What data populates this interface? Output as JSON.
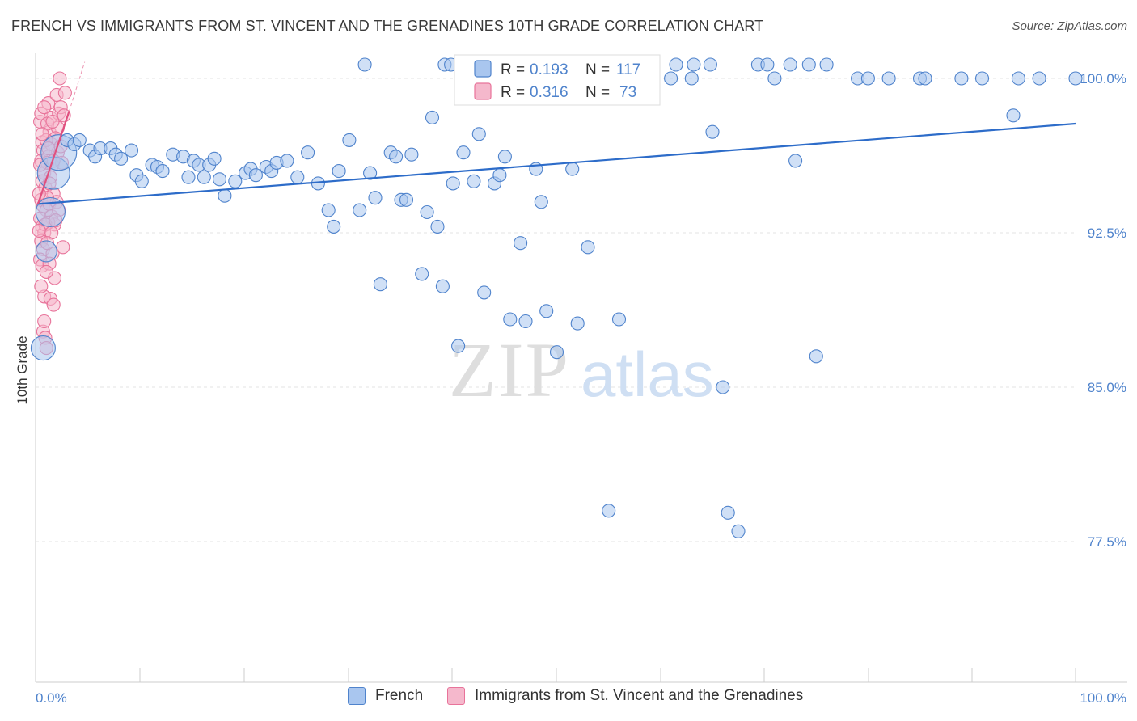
{
  "title": "FRENCH VS IMMIGRANTS FROM ST. VINCENT AND THE GRENADINES 10TH GRADE CORRELATION CHART",
  "source": "Source: ZipAtlas.com",
  "watermark": {
    "zip": "ZIP",
    "atlas": "atlas"
  },
  "colors": {
    "blue": "#4f83cc",
    "blue_fill": "#a9c6ef",
    "blue_line": "#2d6cc9",
    "pink": "#e8739a",
    "pink_fill": "#f5b8cc",
    "pink_line": "#e0507f",
    "grid": "#e3e3e3",
    "axis": "#cccccc"
  },
  "legend_box": {
    "rows": [
      {
        "r_label": "R = ",
        "r_value": "0.193",
        "n_label": "N = ",
        "n_value": "117",
        "color": "blue"
      },
      {
        "r_label": "R = ",
        "r_value": "0.316",
        "n_label": "N = ",
        "n_value": "73",
        "color": "pink"
      }
    ]
  },
  "bottom_legend": [
    {
      "label": "French",
      "color": "blue"
    },
    {
      "label": "Immigrants from St. Vincent and the Grenadines",
      "color": "pink"
    }
  ],
  "chart_data": {
    "type": "scatter",
    "title": "FRENCH VS IMMIGRANTS FROM ST. VINCENT AND THE GRENADINES 10TH GRADE CORRELATION CHART",
    "xlabel": "",
    "ylabel": "10th Grade",
    "xlim": [
      0,
      100
    ],
    "ylim": [
      70,
      101
    ],
    "x_tick_labels": [
      "0.0%",
      "100.0%"
    ],
    "y_ticks": [
      77.5,
      85.0,
      92.5,
      100.0
    ],
    "y_tick_labels": [
      "77.5%",
      "85.0%",
      "92.5%",
      "100.0%"
    ],
    "grid": true,
    "legend_position": "top-center",
    "series": [
      {
        "name": "French",
        "color": "blue",
        "trend": {
          "x": [
            0,
            100
          ],
          "y": [
            93.9,
            97.8
          ]
        },
        "points": [
          [
            0.5,
            86.9
          ],
          [
            0.8,
            91.6
          ],
          [
            1.2,
            93.5
          ],
          [
            1.5,
            95.4
          ],
          [
            2,
            96.4
          ],
          [
            2.8,
            97.0
          ],
          [
            3.5,
            96.8
          ],
          [
            4,
            97.0
          ],
          [
            5,
            96.5
          ],
          [
            5.5,
            96.2
          ],
          [
            6,
            96.6
          ],
          [
            7,
            96.6
          ],
          [
            7.5,
            96.3
          ],
          [
            8,
            96.1
          ],
          [
            9,
            96.5
          ],
          [
            9.5,
            95.3
          ],
          [
            10,
            95.0
          ],
          [
            11,
            95.8
          ],
          [
            11.5,
            95.7
          ],
          [
            12,
            95.5
          ],
          [
            13,
            96.3
          ],
          [
            14,
            96.2
          ],
          [
            14.5,
            95.2
          ],
          [
            15,
            96.0
          ],
          [
            15.5,
            95.8
          ],
          [
            16,
            95.2
          ],
          [
            16.5,
            95.8
          ],
          [
            17,
            96.1
          ],
          [
            17.5,
            95.1
          ],
          [
            18,
            94.3
          ],
          [
            19,
            95.0
          ],
          [
            20,
            95.4
          ],
          [
            20.5,
            95.6
          ],
          [
            21,
            95.3
          ],
          [
            22,
            95.7
          ],
          [
            22.5,
            95.5
          ],
          [
            23,
            95.9
          ],
          [
            24,
            96.0
          ],
          [
            25,
            95.2
          ],
          [
            26,
            96.4
          ],
          [
            27,
            94.9
          ],
          [
            28,
            93.6
          ],
          [
            28.5,
            92.8
          ],
          [
            29,
            95.5
          ],
          [
            30,
            97.0
          ],
          [
            31,
            93.6
          ],
          [
            32,
            95.4
          ],
          [
            32.5,
            94.2
          ],
          [
            33,
            90.0
          ],
          [
            34,
            96.4
          ],
          [
            34.5,
            96.2
          ],
          [
            35,
            94.1
          ],
          [
            35.5,
            94.1
          ],
          [
            36,
            96.3
          ],
          [
            37,
            90.5
          ],
          [
            37.5,
            93.5
          ],
          [
            38,
            98.1
          ],
          [
            38.5,
            92.8
          ],
          [
            39,
            89.9
          ],
          [
            40,
            94.9
          ],
          [
            40.5,
            87.0
          ],
          [
            41,
            96.4
          ],
          [
            42,
            95.0
          ],
          [
            42.5,
            97.3
          ],
          [
            43,
            89.6
          ],
          [
            44,
            94.9
          ],
          [
            44.5,
            95.3
          ],
          [
            45,
            96.2
          ],
          [
            45.5,
            88.3
          ],
          [
            46.5,
            92.0
          ],
          [
            47,
            88.2
          ],
          [
            48,
            95.6
          ],
          [
            48.5,
            94.0
          ],
          [
            49,
            88.7
          ],
          [
            50,
            86.7
          ],
          [
            51.5,
            95.6
          ],
          [
            52,
            88.1
          ],
          [
            53,
            91.8
          ],
          [
            55,
            79.0
          ],
          [
            56,
            88.3
          ],
          [
            57,
            100.0
          ],
          [
            61,
            100.0
          ],
          [
            63,
            100.0
          ],
          [
            65,
            97.4
          ],
          [
            66,
            85.0
          ],
          [
            66.5,
            78.9
          ],
          [
            67.5,
            78.0
          ],
          [
            71,
            100.0
          ],
          [
            73,
            96.0
          ],
          [
            75,
            86.5
          ],
          [
            79,
            100.0
          ],
          [
            80,
            100.0
          ],
          [
            82,
            100.0
          ],
          [
            85,
            100.0
          ],
          [
            85.5,
            100.0
          ],
          [
            89,
            100.0
          ],
          [
            91,
            100.0
          ],
          [
            94,
            98.2
          ],
          [
            94.5,
            100.0
          ],
          [
            96.5,
            100.0
          ],
          [
            100,
            100.0
          ]
        ],
        "top_row_points": [
          31.5,
          39.2,
          39.8,
          42.3,
          43.8,
          47.3,
          48.5,
          51.9,
          55.2,
          61.5,
          63.2,
          64.8,
          69.4,
          70.3,
          72.5,
          74.3,
          76.0
        ]
      },
      {
        "name": "Immigrants from St. Vincent and the Grenadines",
        "color": "pink",
        "trend": {
          "x": [
            0,
            3.0
          ],
          "y": [
            93.9,
            98.4
          ]
        },
        "trend_ext": {
          "x": [
            3.0,
            4.5
          ],
          "y": [
            98.4,
            100.8
          ]
        },
        "points": [
          [
            0.2,
            97.9
          ],
          [
            0.3,
            98.3
          ],
          [
            0.4,
            96.9
          ],
          [
            0.5,
            96.5
          ],
          [
            0.3,
            96.0
          ],
          [
            0.6,
            95.4
          ],
          [
            0.4,
            95.0
          ],
          [
            0.7,
            94.7
          ],
          [
            0.3,
            94.1
          ],
          [
            0.5,
            93.8
          ],
          [
            0.8,
            93.6
          ],
          [
            0.2,
            93.2
          ],
          [
            0.4,
            92.8
          ],
          [
            0.6,
            92.5
          ],
          [
            0.3,
            92.1
          ],
          [
            0.5,
            91.7
          ],
          [
            0.2,
            91.2
          ],
          [
            0.4,
            90.9
          ],
          [
            0.6,
            89.4
          ],
          [
            0.5,
            87.7
          ],
          [
            0.7,
            87.4
          ],
          [
            0.8,
            86.9
          ],
          [
            1.0,
            98.8
          ],
          [
            1.2,
            98.1
          ],
          [
            1.1,
            97.4
          ],
          [
            1.3,
            96.8
          ],
          [
            1.0,
            96.2
          ],
          [
            1.4,
            95.8
          ],
          [
            1.2,
            95.2
          ],
          [
            1.5,
            94.4
          ],
          [
            1.1,
            93.9
          ],
          [
            1.3,
            93.3
          ],
          [
            1.6,
            92.9
          ],
          [
            1.4,
            91.5
          ],
          [
            1.6,
            90.3
          ],
          [
            1.2,
            89.3
          ],
          [
            1.5,
            89.0
          ],
          [
            1.8,
            99.2
          ],
          [
            2.0,
            98.3
          ],
          [
            1.9,
            97.6
          ],
          [
            2.2,
            98.6
          ],
          [
            2.5,
            98.2
          ],
          [
            2.1,
            100.0
          ],
          [
            1.7,
            97.1
          ],
          [
            1.9,
            96.4
          ],
          [
            2.3,
            95.9
          ],
          [
            1.8,
            94.0
          ],
          [
            2.0,
            93.6
          ],
          [
            2.4,
            91.8
          ],
          [
            0.9,
            97.8
          ],
          [
            0.8,
            97.0
          ],
          [
            1.0,
            96.6
          ],
          [
            0.9,
            95.9
          ],
          [
            1.1,
            94.9
          ],
          [
            0.9,
            94.2
          ],
          [
            1.0,
            93.0
          ],
          [
            0.7,
            92.9
          ],
          [
            0.6,
            98.6
          ],
          [
            0.4,
            97.3
          ],
          [
            0.2,
            95.8
          ],
          [
            0.1,
            94.4
          ],
          [
            0.1,
            92.6
          ],
          [
            1.7,
            93.1
          ],
          [
            1.3,
            92.5
          ],
          [
            0.9,
            92.0
          ],
          [
            2.6,
            99.3
          ],
          [
            1.4,
            97.9
          ],
          [
            2.2,
            96.7
          ],
          [
            1.5,
            96.0
          ],
          [
            0.3,
            89.9
          ],
          [
            0.6,
            88.2
          ],
          [
            1.1,
            91.0
          ],
          [
            0.8,
            90.6
          ]
        ]
      }
    ]
  }
}
